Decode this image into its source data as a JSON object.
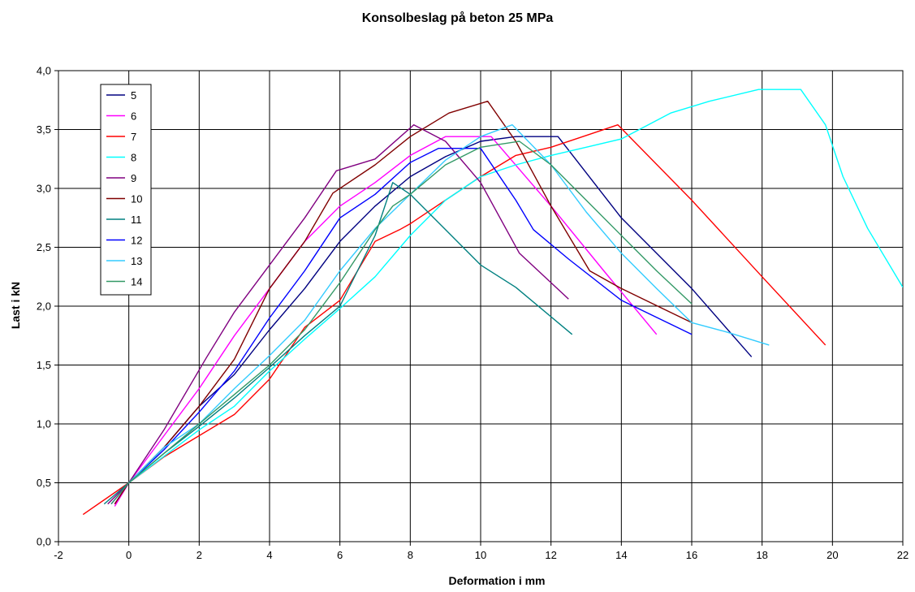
{
  "chart_data": {
    "type": "line",
    "title": "Konsolbeslag på beton 25 MPa",
    "xlabel": "Deformation i mm",
    "ylabel": "Last i kN",
    "xlim": [
      -2,
      22
    ],
    "ylim": [
      0,
      4
    ],
    "x_ticks": [
      "-2",
      "0",
      "2",
      "4",
      "6",
      "8",
      "10",
      "12",
      "14",
      "16",
      "18",
      "20",
      "22"
    ],
    "x_tick_values": [
      -2,
      0,
      2,
      4,
      6,
      8,
      10,
      12,
      14,
      16,
      18,
      20,
      22
    ],
    "y_ticks": [
      "0,0",
      "0,5",
      "1,0",
      "1,5",
      "2,0",
      "2,5",
      "3,0",
      "3,5",
      "4,0"
    ],
    "y_tick_values": [
      0,
      0.5,
      1.0,
      1.5,
      2.0,
      2.5,
      3.0,
      3.5,
      4.0
    ],
    "grid": true,
    "legend_position": "top-left",
    "series": [
      {
        "name": "5",
        "color": "#000080",
        "points": [
          [
            -0.4,
            0.32
          ],
          [
            0,
            0.5
          ],
          [
            1,
            0.8
          ],
          [
            2,
            1.15
          ],
          [
            3,
            1.42
          ],
          [
            4,
            1.8
          ],
          [
            5,
            2.15
          ],
          [
            6,
            2.55
          ],
          [
            7,
            2.85
          ],
          [
            8,
            3.1
          ],
          [
            9,
            3.27
          ],
          [
            10,
            3.4
          ],
          [
            11,
            3.44
          ],
          [
            12.2,
            3.44
          ],
          [
            14,
            2.75
          ],
          [
            16,
            2.15
          ],
          [
            17.7,
            1.57
          ]
        ]
      },
      {
        "name": "6",
        "color": "#ff00ff",
        "points": [
          [
            -0.4,
            0.3
          ],
          [
            0,
            0.5
          ],
          [
            1,
            0.9
          ],
          [
            2,
            1.3
          ],
          [
            3,
            1.75
          ],
          [
            4,
            2.15
          ],
          [
            5,
            2.55
          ],
          [
            6,
            2.85
          ],
          [
            7,
            3.05
          ],
          [
            8,
            3.28
          ],
          [
            9,
            3.44
          ],
          [
            10.3,
            3.44
          ],
          [
            12,
            2.85
          ],
          [
            13.5,
            2.3
          ],
          [
            15,
            1.76
          ]
        ]
      },
      {
        "name": "7",
        "color": "#ff0000",
        "points": [
          [
            -1.3,
            0.23
          ],
          [
            0,
            0.5
          ],
          [
            1,
            0.72
          ],
          [
            2,
            0.9
          ],
          [
            3,
            1.08
          ],
          [
            4,
            1.38
          ],
          [
            5,
            1.82
          ],
          [
            6,
            2.05
          ],
          [
            7,
            2.55
          ],
          [
            7.7,
            2.65
          ],
          [
            8,
            2.7
          ],
          [
            9,
            2.9
          ],
          [
            10,
            3.1
          ],
          [
            11,
            3.28
          ],
          [
            12,
            3.35
          ],
          [
            13,
            3.45
          ],
          [
            13.9,
            3.54
          ],
          [
            16,
            2.9
          ],
          [
            18,
            2.25
          ],
          [
            19.8,
            1.67
          ]
        ]
      },
      {
        "name": "8",
        "color": "#00ffff",
        "points": [
          [
            0,
            0.5
          ],
          [
            2,
            0.95
          ],
          [
            3,
            1.15
          ],
          [
            4,
            1.45
          ],
          [
            5,
            1.72
          ],
          [
            6,
            1.98
          ],
          [
            7,
            2.25
          ],
          [
            8,
            2.6
          ],
          [
            9,
            2.9
          ],
          [
            10,
            3.1
          ],
          [
            11,
            3.2
          ],
          [
            12,
            3.28
          ],
          [
            13,
            3.35
          ],
          [
            14,
            3.42
          ],
          [
            15.4,
            3.64
          ],
          [
            16.5,
            3.74
          ],
          [
            17.9,
            3.84
          ],
          [
            19.1,
            3.84
          ],
          [
            19.8,
            3.54
          ],
          [
            20.3,
            3.1
          ],
          [
            21,
            2.66
          ],
          [
            22,
            2.16
          ]
        ]
      },
      {
        "name": "9",
        "color": "#800080",
        "points": [
          [
            -0.6,
            0.32
          ],
          [
            0,
            0.5
          ],
          [
            1,
            0.95
          ],
          [
            2.2,
            1.56
          ],
          [
            3,
            1.95
          ],
          [
            4,
            2.35
          ],
          [
            5,
            2.75
          ],
          [
            5.9,
            3.15
          ],
          [
            7,
            3.25
          ],
          [
            8.1,
            3.54
          ],
          [
            9,
            3.4
          ],
          [
            10,
            3.05
          ],
          [
            11.1,
            2.45
          ],
          [
            12.5,
            2.06
          ]
        ]
      },
      {
        "name": "10",
        "color": "#800000",
        "points": [
          [
            -0.4,
            0.32
          ],
          [
            0,
            0.5
          ],
          [
            1,
            0.8
          ],
          [
            2,
            1.15
          ],
          [
            3,
            1.55
          ],
          [
            4,
            2.15
          ],
          [
            5,
            2.55
          ],
          [
            5.8,
            2.96
          ],
          [
            7,
            3.2
          ],
          [
            8,
            3.44
          ],
          [
            9.1,
            3.64
          ],
          [
            10.2,
            3.74
          ],
          [
            11,
            3.4
          ],
          [
            12,
            2.85
          ],
          [
            13.1,
            2.3
          ],
          [
            14,
            2.15
          ],
          [
            16,
            1.86
          ]
        ]
      },
      {
        "name": "11",
        "color": "#008080",
        "points": [
          [
            -0.7,
            0.32
          ],
          [
            0,
            0.5
          ],
          [
            1,
            0.75
          ],
          [
            2,
            0.98
          ],
          [
            3,
            1.22
          ],
          [
            4,
            1.48
          ],
          [
            5,
            1.75
          ],
          [
            6,
            2.0
          ],
          [
            7,
            2.6
          ],
          [
            7.5,
            3.05
          ],
          [
            8,
            2.95
          ],
          [
            9,
            2.65
          ],
          [
            10,
            2.35
          ],
          [
            11,
            2.16
          ],
          [
            12.6,
            1.76
          ]
        ]
      },
      {
        "name": "12",
        "color": "#0000ff",
        "points": [
          [
            -0.5,
            0.32
          ],
          [
            0,
            0.5
          ],
          [
            1,
            0.78
          ],
          [
            2,
            1.1
          ],
          [
            3,
            1.45
          ],
          [
            4,
            1.9
          ],
          [
            5,
            2.3
          ],
          [
            6,
            2.75
          ],
          [
            7,
            2.95
          ],
          [
            8,
            3.22
          ],
          [
            8.8,
            3.34
          ],
          [
            10,
            3.34
          ],
          [
            11,
            2.9
          ],
          [
            11.5,
            2.65
          ],
          [
            12.5,
            2.4
          ],
          [
            14,
            2.05
          ],
          [
            16,
            1.76
          ]
        ]
      },
      {
        "name": "13",
        "color": "#33ccff",
        "points": [
          [
            0,
            0.5
          ],
          [
            1,
            0.8
          ],
          [
            2,
            1.0
          ],
          [
            3,
            1.3
          ],
          [
            4,
            1.58
          ],
          [
            5,
            1.88
          ],
          [
            6,
            2.3
          ],
          [
            7,
            2.66
          ],
          [
            8,
            2.95
          ],
          [
            9,
            3.24
          ],
          [
            10,
            3.44
          ],
          [
            10.9,
            3.54
          ],
          [
            12,
            3.2
          ],
          [
            13,
            2.8
          ],
          [
            14,
            2.45
          ],
          [
            15,
            2.15
          ],
          [
            16,
            1.86
          ],
          [
            17,
            1.78
          ],
          [
            18.2,
            1.67
          ]
        ]
      },
      {
        "name": "14",
        "color": "#339966",
        "points": [
          [
            -0.5,
            0.32
          ],
          [
            0,
            0.5
          ],
          [
            1,
            0.75
          ],
          [
            2,
            1.0
          ],
          [
            3,
            1.25
          ],
          [
            4,
            1.5
          ],
          [
            5,
            1.8
          ],
          [
            6,
            2.2
          ],
          [
            7,
            2.65
          ],
          [
            7.5,
            2.85
          ],
          [
            8,
            2.95
          ],
          [
            9,
            3.2
          ],
          [
            10,
            3.35
          ],
          [
            11.1,
            3.4
          ],
          [
            12,
            3.2
          ],
          [
            13,
            2.9
          ],
          [
            14,
            2.6
          ],
          [
            15,
            2.3
          ],
          [
            16,
            2.02
          ]
        ]
      }
    ]
  }
}
